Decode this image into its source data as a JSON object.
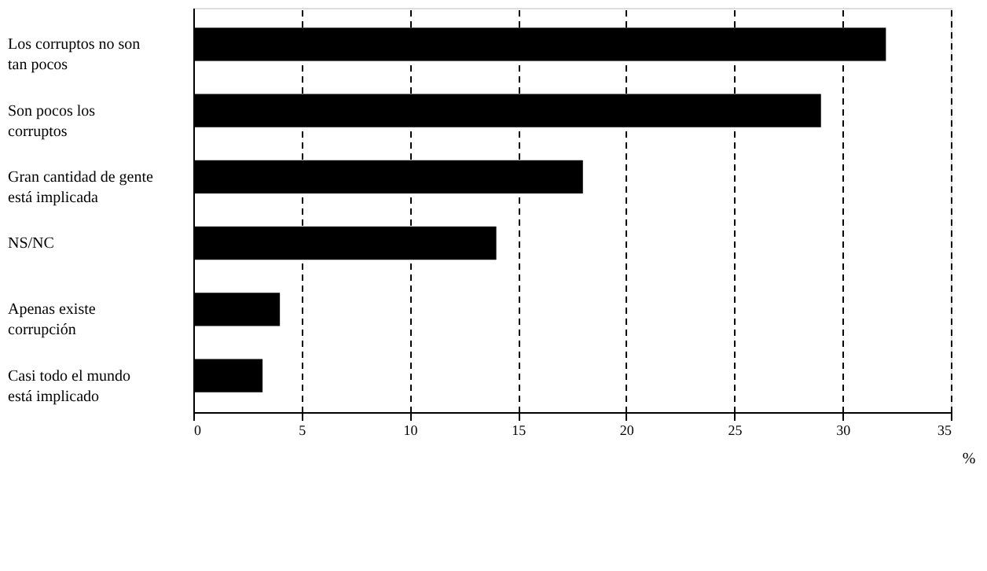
{
  "chart_data": {
    "type": "bar",
    "orientation": "horizontal",
    "xlabel": "%",
    "categories": [
      "Los corruptos no son tan pocos",
      "Son pocos los corruptos",
      "Gran cantidad de gente está implicada",
      "NS/NC",
      "Apenas existe corrupción",
      "Casi todo el mundo está implicado"
    ],
    "values": [
      32,
      29,
      18,
      14,
      4,
      3.2
    ],
    "color": "#000000",
    "xlim": [
      0,
      35
    ],
    "xticks": [
      0,
      5,
      10,
      15,
      20,
      25,
      30,
      35
    ],
    "grid": "x"
  }
}
